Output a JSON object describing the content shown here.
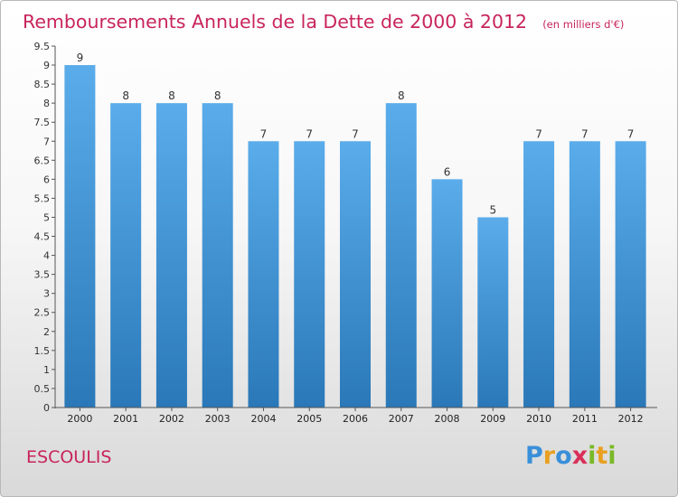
{
  "chart_data": {
    "type": "bar",
    "title": "Remboursements Annuels de la Dette de 2000 à 2012",
    "subtitle": "(en milliers d'€)",
    "categories": [
      "2000",
      "2001",
      "2002",
      "2003",
      "2004",
      "2005",
      "2006",
      "2007",
      "2008",
      "2009",
      "2010",
      "2011",
      "2012"
    ],
    "values": [
      9,
      8,
      8,
      8,
      7,
      7,
      7,
      8,
      6,
      5,
      7,
      7,
      7
    ],
    "value_labels": [
      "9",
      "8",
      "8",
      "8",
      "7",
      "7",
      "7",
      "8",
      "6",
      "5",
      "7",
      "7",
      "7"
    ],
    "ylim": [
      0,
      9.5
    ],
    "yticks": [
      "0",
      "0.5",
      "1",
      "1.5",
      "2",
      "2.5",
      "3",
      "3.5",
      "4",
      "4.5",
      "5",
      "5.5",
      "6",
      "6.5",
      "7",
      "7.5",
      "8",
      "8.5",
      "9",
      "9.5"
    ],
    "ytick_values": [
      0,
      0.5,
      1,
      1.5,
      2,
      2.5,
      3,
      3.5,
      4,
      4.5,
      5,
      5.5,
      6,
      6.5,
      7,
      7.5,
      8,
      8.5,
      9,
      9.5
    ],
    "grid": false,
    "bar_color_top": "#5aacea",
    "bar_color_bottom": "#2a78b8"
  },
  "place_name": "ESCOULIS",
  "logo": {
    "letters": [
      "P",
      "r",
      "o",
      "x",
      "i",
      "t",
      "i"
    ],
    "colors": [
      "#3a8fd9",
      "#e8a020",
      "#3a8fd9",
      "#d8305a",
      "#7ab828",
      "#e8a020",
      "#7ab828"
    ]
  }
}
